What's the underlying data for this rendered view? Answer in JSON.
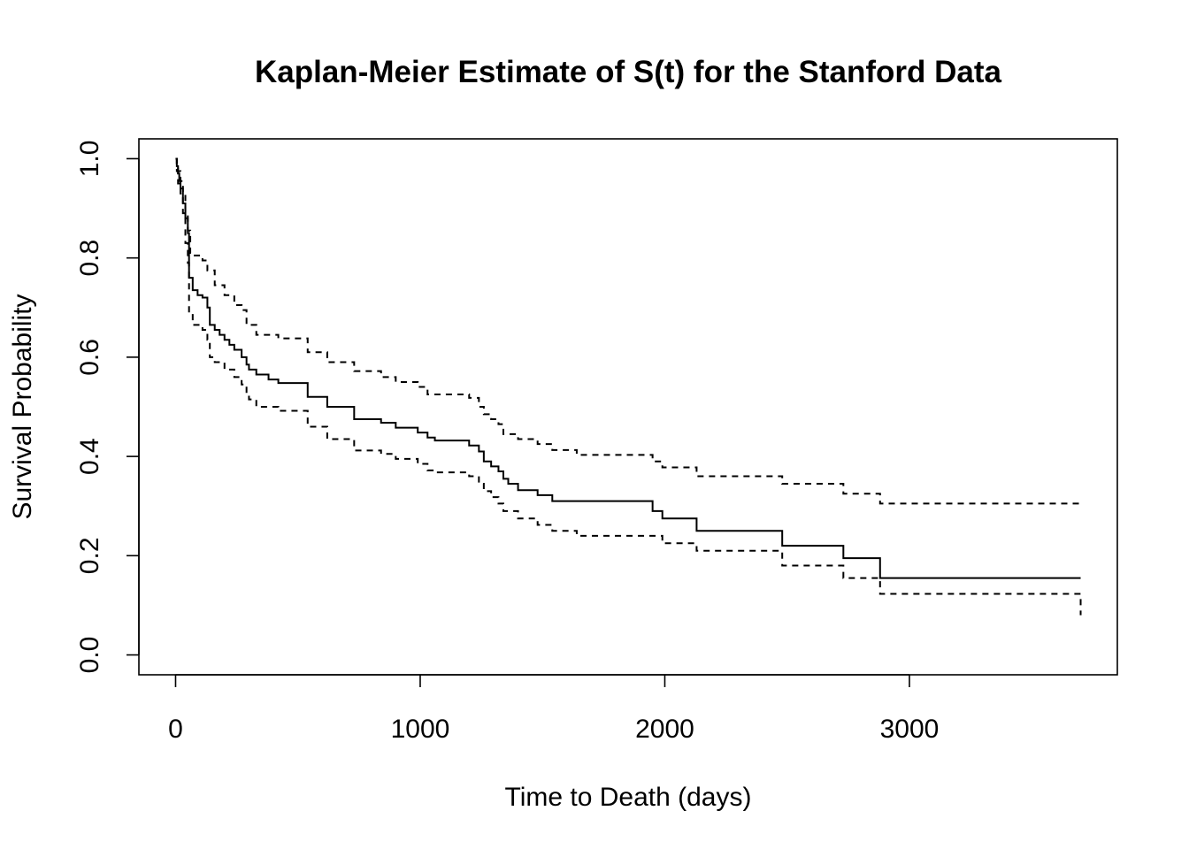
{
  "chart_data": {
    "type": "line",
    "title": "Kaplan-Meier Estimate of S(t) for the Stanford Data",
    "xlabel": "Time to Death (days)",
    "ylabel": "Survival Probability",
    "xlim": [
      -150,
      3850
    ],
    "ylim": [
      -0.04,
      1.04
    ],
    "xticks": [
      0,
      1000,
      2000,
      3000
    ],
    "xtick_labels": [
      "0",
      "1000",
      "2000",
      "3000"
    ],
    "yticks": [
      0.0,
      0.2,
      0.4,
      0.6,
      0.8,
      1.0
    ],
    "ytick_labels": [
      "0.0",
      "0.2",
      "0.4",
      "0.6",
      "0.8",
      "1.0"
    ],
    "grid": false,
    "step": true,
    "colors": {
      "line": "#000000",
      "axis": "#000000",
      "background": "#ffffff"
    },
    "series": [
      {
        "style": "solid",
        "x": [
          0,
          5,
          10,
          15,
          20,
          30,
          40,
          50,
          55,
          70,
          90,
          110,
          130,
          140,
          160,
          180,
          200,
          220,
          240,
          270,
          290,
          300,
          330,
          380,
          420,
          540,
          620,
          730,
          840,
          900,
          990,
          1030,
          1060,
          1200,
          1240,
          1260,
          1290,
          1320,
          1340,
          1360,
          1400,
          1480,
          1540,
          1640,
          1950,
          1990,
          2130,
          2480,
          2730,
          2880,
          3700
        ],
        "y": [
          1.0,
          0.985,
          0.97,
          0.955,
          0.94,
          0.91,
          0.88,
          0.85,
          0.76,
          0.735,
          0.725,
          0.72,
          0.7,
          0.665,
          0.655,
          0.645,
          0.635,
          0.625,
          0.615,
          0.6,
          0.585,
          0.575,
          0.565,
          0.555,
          0.548,
          0.52,
          0.5,
          0.475,
          0.468,
          0.458,
          0.448,
          0.438,
          0.432,
          0.422,
          0.41,
          0.39,
          0.38,
          0.37,
          0.355,
          0.345,
          0.332,
          0.322,
          0.31,
          0.31,
          0.29,
          0.275,
          0.25,
          0.22,
          0.195,
          0.155,
          0.155
        ]
      },
      {
        "style": "dashed",
        "x": [
          0,
          5,
          10,
          20,
          30,
          40,
          50,
          60,
          70,
          110,
          130,
          160,
          200,
          240,
          270,
          290,
          330,
          420,
          540,
          620,
          730,
          840,
          900,
          990,
          1030,
          1200,
          1240,
          1260,
          1290,
          1320,
          1340,
          1400,
          1480,
          1540,
          1640,
          1950,
          1990,
          2130,
          2480,
          2730,
          2880,
          3700
        ],
        "y": [
          1.0,
          0.99,
          0.975,
          0.955,
          0.93,
          0.89,
          0.855,
          0.81,
          0.805,
          0.795,
          0.775,
          0.745,
          0.725,
          0.705,
          0.695,
          0.665,
          0.645,
          0.638,
          0.61,
          0.59,
          0.572,
          0.56,
          0.55,
          0.54,
          0.525,
          0.518,
          0.5,
          0.485,
          0.475,
          0.465,
          0.445,
          0.435,
          0.425,
          0.413,
          0.403,
          0.39,
          0.378,
          0.36,
          0.345,
          0.325,
          0.305,
          0.305
        ]
      },
      {
        "style": "dashed",
        "x": [
          0,
          5,
          10,
          20,
          30,
          40,
          50,
          55,
          70,
          110,
          130,
          140,
          160,
          200,
          240,
          270,
          290,
          300,
          330,
          420,
          540,
          620,
          730,
          840,
          900,
          990,
          1030,
          1060,
          1200,
          1240,
          1260,
          1290,
          1320,
          1340,
          1400,
          1480,
          1540,
          1640,
          1950,
          1990,
          2130,
          2480,
          2730,
          2880,
          3700
        ],
        "y": [
          1.0,
          0.975,
          0.95,
          0.93,
          0.89,
          0.83,
          0.79,
          0.69,
          0.665,
          0.655,
          0.635,
          0.6,
          0.59,
          0.575,
          0.56,
          0.545,
          0.525,
          0.515,
          0.5,
          0.492,
          0.46,
          0.435,
          0.412,
          0.405,
          0.395,
          0.385,
          0.372,
          0.368,
          0.36,
          0.345,
          0.33,
          0.318,
          0.305,
          0.29,
          0.275,
          0.262,
          0.25,
          0.24,
          0.24,
          0.225,
          0.21,
          0.18,
          0.155,
          0.123,
          0.08
        ]
      }
    ]
  }
}
